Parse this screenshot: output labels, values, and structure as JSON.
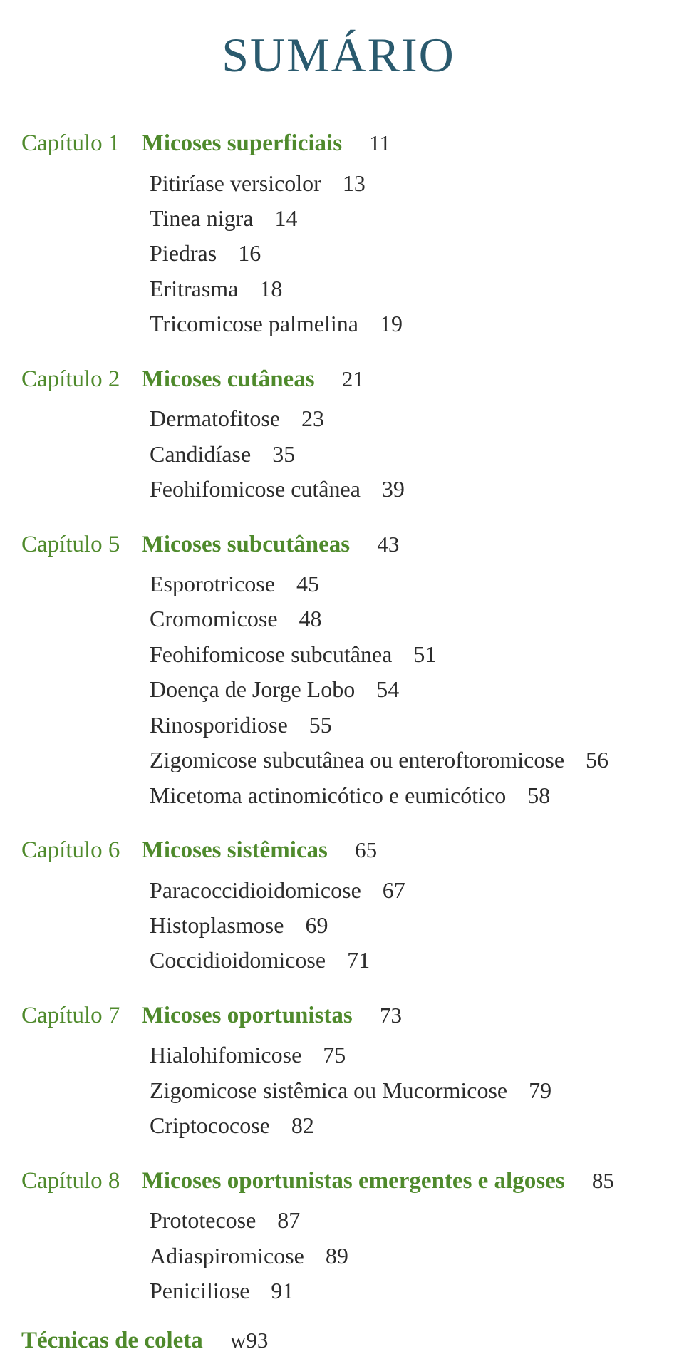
{
  "title": "SUMÁRIO",
  "title_color": "#2a5a6e",
  "chapter_color": "#4f8a2c",
  "text_color": "#2c2c2c",
  "background_color": "#ffffff",
  "chapter_label": "Capítulo",
  "chapters": [
    {
      "num": "1",
      "title": "Micoses superficiais",
      "page": "11",
      "subs": [
        {
          "label": "Pitiríase versicolor",
          "page": "13"
        },
        {
          "label": "Tinea nigra",
          "page": "14"
        },
        {
          "label": "Piedras",
          "page": "16"
        },
        {
          "label": "Eritrasma",
          "page": "18"
        },
        {
          "label": "Tricomicose palmelina",
          "page": "19"
        }
      ]
    },
    {
      "num": "2",
      "title": "Micoses cutâneas",
      "page": "21",
      "subs": [
        {
          "label": "Dermatofitose",
          "page": "23"
        },
        {
          "label": "Candidíase",
          "page": "35"
        },
        {
          "label": "Feohifomicose cutânea",
          "page": "39"
        }
      ]
    },
    {
      "num": "5",
      "title": "Micoses subcutâneas",
      "page": "43",
      "subs": [
        {
          "label": "Esporotricose",
          "page": "45"
        },
        {
          "label": "Cromomicose",
          "page": "48"
        },
        {
          "label": "Feohifomicose subcutânea",
          "page": "51"
        },
        {
          "label": "Doença de Jorge Lobo",
          "page": "54"
        },
        {
          "label": "Rinosporidiose",
          "page": "55"
        },
        {
          "label": "Zigomicose subcutânea ou enteroftoromicose",
          "page": "56"
        },
        {
          "label": "Micetoma actinomicótico e eumicótico",
          "page": "58"
        }
      ]
    },
    {
      "num": "6",
      "title": "Micoses sistêmicas",
      "page": "65",
      "subs": [
        {
          "label": "Paracoccidioidomicose",
          "page": "67"
        },
        {
          "label": "Histoplasmose",
          "page": "69"
        },
        {
          "label": "Coccidioidomicose",
          "page": "71"
        }
      ]
    },
    {
      "num": "7",
      "title": "Micoses oportunistas",
      "page": "73",
      "subs": [
        {
          "label": "Hialohifomicose",
          "page": "75"
        },
        {
          "label": "Zigomicose sistêmica ou Mucormicose",
          "page": "79"
        },
        {
          "label": "Criptococose",
          "page": "82"
        }
      ]
    },
    {
      "num": "8",
      "title": "Micoses oportunistas emergentes e algoses",
      "page": "85",
      "subs": [
        {
          "label": "Prototecose",
          "page": "87"
        },
        {
          "label": "Adiaspiromicose",
          "page": "89"
        },
        {
          "label": "Peniciliose",
          "page": "91"
        }
      ]
    }
  ],
  "section": {
    "title": "Técnicas de coleta",
    "page": "w93"
  }
}
